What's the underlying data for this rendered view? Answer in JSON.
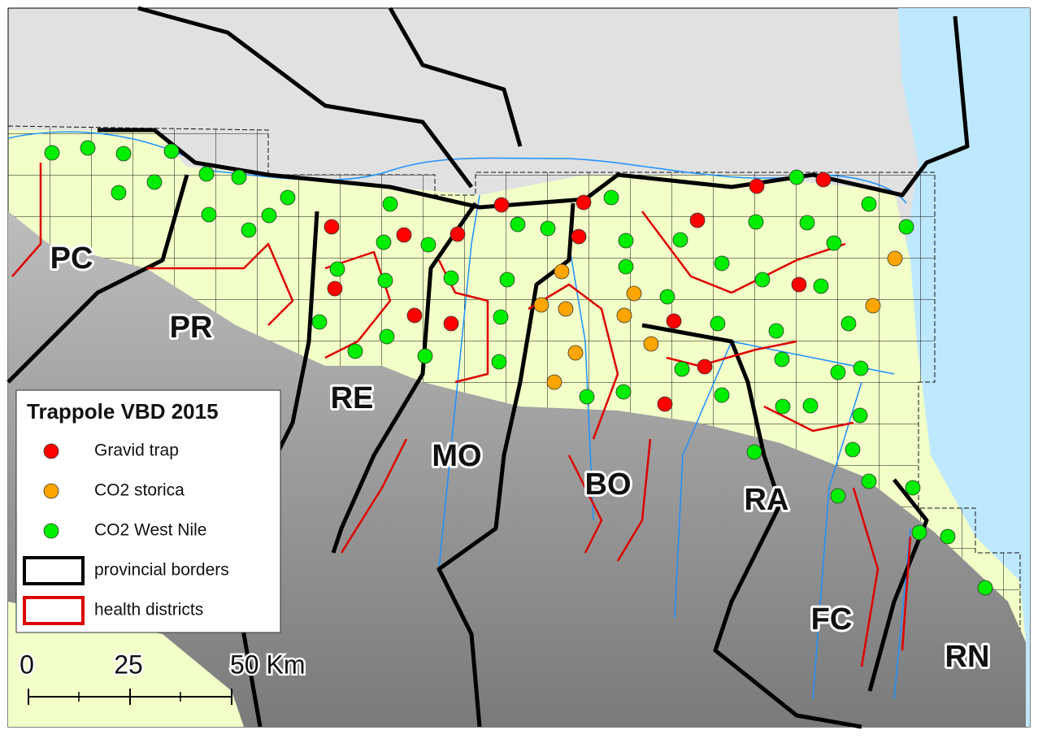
{
  "legend": {
    "title": "Trappole VBD 2015",
    "items": [
      {
        "label": "Gravid trap",
        "color": "#ff0000"
      },
      {
        "label": "CO2 storica",
        "color": "#ffa500"
      },
      {
        "label": "CO2 West Nile",
        "color": "#00ee00"
      },
      {
        "label": "provincial borders",
        "color": "#000000"
      },
      {
        "label": "health districts",
        "color": "#dd0000"
      }
    ]
  },
  "labels": {
    "provinces": [
      "PC",
      "PR",
      "RE",
      "MO",
      "BO",
      "RA",
      "FC",
      "RN"
    ]
  },
  "scale_bar": {
    "labels": [
      "0",
      "25",
      "50 Km"
    ]
  }
}
